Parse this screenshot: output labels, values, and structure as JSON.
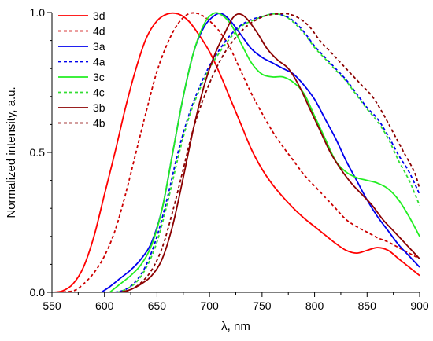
{
  "chart_data": {
    "type": "line",
    "title": "",
    "xlabel": "λ, nm",
    "ylabel": "Normalized intensity, a.u.",
    "xlim": [
      550,
      900
    ],
    "ylim": [
      0,
      1.0
    ],
    "x_ticks": [
      550,
      600,
      650,
      700,
      750,
      800,
      850,
      900
    ],
    "y_ticks": [
      0.0,
      0.5,
      1.0
    ],
    "x_tick_labels": [
      "550",
      "600",
      "650",
      "700",
      "750",
      "800",
      "850",
      "900"
    ],
    "y_tick_labels": [
      "0.0",
      "0.5",
      "1.0"
    ],
    "grid": false,
    "legend_position": "top-left",
    "series": [
      {
        "name": "3d",
        "color": "#ff0000",
        "dash": "solid",
        "points": [
          [
            550,
            0.0
          ],
          [
            560,
            0.005
          ],
          [
            570,
            0.03
          ],
          [
            580,
            0.09
          ],
          [
            590,
            0.2
          ],
          [
            600,
            0.35
          ],
          [
            610,
            0.5
          ],
          [
            620,
            0.66
          ],
          [
            630,
            0.8
          ],
          [
            640,
            0.91
          ],
          [
            650,
            0.97
          ],
          [
            660,
            0.995
          ],
          [
            670,
            0.995
          ],
          [
            680,
            0.97
          ],
          [
            690,
            0.92
          ],
          [
            700,
            0.86
          ],
          [
            710,
            0.78
          ],
          [
            720,
            0.69
          ],
          [
            730,
            0.6
          ],
          [
            740,
            0.51
          ],
          [
            750,
            0.44
          ],
          [
            760,
            0.385
          ],
          [
            770,
            0.34
          ],
          [
            780,
            0.3
          ],
          [
            790,
            0.265
          ],
          [
            800,
            0.235
          ],
          [
            810,
            0.205
          ],
          [
            820,
            0.175
          ],
          [
            830,
            0.15
          ],
          [
            840,
            0.14
          ],
          [
            850,
            0.15
          ],
          [
            860,
            0.16
          ],
          [
            870,
            0.15
          ],
          [
            880,
            0.12
          ],
          [
            890,
            0.09
          ],
          [
            900,
            0.06
          ]
        ]
      },
      {
        "name": "4d",
        "color": "#cc0000",
        "dash": "dashed",
        "points": [
          [
            550,
            0.0
          ],
          [
            570,
            0.005
          ],
          [
            580,
            0.03
          ],
          [
            590,
            0.07
          ],
          [
            600,
            0.13
          ],
          [
            610,
            0.22
          ],
          [
            620,
            0.35
          ],
          [
            630,
            0.5
          ],
          [
            640,
            0.65
          ],
          [
            650,
            0.79
          ],
          [
            660,
            0.89
          ],
          [
            670,
            0.96
          ],
          [
            680,
            0.995
          ],
          [
            690,
            0.995
          ],
          [
            700,
            0.97
          ],
          [
            710,
            0.93
          ],
          [
            720,
            0.87
          ],
          [
            730,
            0.79
          ],
          [
            740,
            0.71
          ],
          [
            750,
            0.64
          ],
          [
            760,
            0.575
          ],
          [
            770,
            0.52
          ],
          [
            780,
            0.47
          ],
          [
            790,
            0.42
          ],
          [
            800,
            0.38
          ],
          [
            810,
            0.34
          ],
          [
            820,
            0.3
          ],
          [
            830,
            0.26
          ],
          [
            840,
            0.235
          ],
          [
            850,
            0.215
          ],
          [
            860,
            0.195
          ],
          [
            870,
            0.18
          ],
          [
            880,
            0.16
          ],
          [
            890,
            0.14
          ],
          [
            900,
            0.12
          ]
        ]
      },
      {
        "name": "3a",
        "color": "#0000ee",
        "dash": "solid",
        "points": [
          [
            597,
            0.0
          ],
          [
            605,
            0.02
          ],
          [
            615,
            0.05
          ],
          [
            625,
            0.08
          ],
          [
            635,
            0.12
          ],
          [
            645,
            0.18
          ],
          [
            655,
            0.3
          ],
          [
            665,
            0.5
          ],
          [
            675,
            0.7
          ],
          [
            685,
            0.86
          ],
          [
            695,
            0.95
          ],
          [
            705,
            0.99
          ],
          [
            712,
            0.995
          ],
          [
            720,
            0.97
          ],
          [
            730,
            0.92
          ],
          [
            740,
            0.87
          ],
          [
            750,
            0.84
          ],
          [
            760,
            0.82
          ],
          [
            770,
            0.8
          ],
          [
            780,
            0.78
          ],
          [
            790,
            0.74
          ],
          [
            800,
            0.69
          ],
          [
            810,
            0.62
          ],
          [
            820,
            0.55
          ],
          [
            830,
            0.47
          ],
          [
            840,
            0.4
          ],
          [
            850,
            0.33
          ],
          [
            860,
            0.27
          ],
          [
            870,
            0.22
          ],
          [
            880,
            0.17
          ],
          [
            890,
            0.13
          ],
          [
            900,
            0.09
          ]
        ]
      },
      {
        "name": "4a",
        "color": "#0000ee",
        "dash": "dashed",
        "points": [
          [
            610,
            0.0
          ],
          [
            620,
            0.01
          ],
          [
            630,
            0.04
          ],
          [
            640,
            0.1
          ],
          [
            650,
            0.2
          ],
          [
            660,
            0.34
          ],
          [
            670,
            0.5
          ],
          [
            680,
            0.63
          ],
          [
            690,
            0.73
          ],
          [
            700,
            0.81
          ],
          [
            710,
            0.87
          ],
          [
            720,
            0.92
          ],
          [
            730,
            0.955
          ],
          [
            740,
            0.975
          ],
          [
            750,
            0.985
          ],
          [
            760,
            0.995
          ],
          [
            770,
            0.99
          ],
          [
            780,
            0.97
          ],
          [
            790,
            0.93
          ],
          [
            800,
            0.88
          ],
          [
            810,
            0.84
          ],
          [
            820,
            0.8
          ],
          [
            830,
            0.76
          ],
          [
            840,
            0.71
          ],
          [
            850,
            0.66
          ],
          [
            860,
            0.62
          ],
          [
            870,
            0.56
          ],
          [
            880,
            0.49
          ],
          [
            890,
            0.43
          ],
          [
            900,
            0.35
          ]
        ]
      },
      {
        "name": "3c",
        "color": "#22ee22",
        "dash": "solid",
        "points": [
          [
            605,
            0.0
          ],
          [
            615,
            0.03
          ],
          [
            625,
            0.06
          ],
          [
            635,
            0.1
          ],
          [
            645,
            0.17
          ],
          [
            655,
            0.3
          ],
          [
            665,
            0.5
          ],
          [
            675,
            0.7
          ],
          [
            685,
            0.86
          ],
          [
            695,
            0.96
          ],
          [
            703,
            0.995
          ],
          [
            710,
            0.995
          ],
          [
            720,
            0.96
          ],
          [
            730,
            0.89
          ],
          [
            740,
            0.82
          ],
          [
            750,
            0.78
          ],
          [
            760,
            0.77
          ],
          [
            770,
            0.77
          ],
          [
            780,
            0.75
          ],
          [
            790,
            0.71
          ],
          [
            800,
            0.63
          ],
          [
            810,
            0.55
          ],
          [
            820,
            0.47
          ],
          [
            830,
            0.43
          ],
          [
            840,
            0.41
          ],
          [
            850,
            0.4
          ],
          [
            860,
            0.39
          ],
          [
            870,
            0.37
          ],
          [
            880,
            0.33
          ],
          [
            890,
            0.27
          ],
          [
            900,
            0.2
          ]
        ]
      },
      {
        "name": "4c",
        "color": "#33dd33",
        "dash": "dashed",
        "points": [
          [
            612,
            0.0
          ],
          [
            620,
            0.01
          ],
          [
            630,
            0.035
          ],
          [
            640,
            0.09
          ],
          [
            650,
            0.18
          ],
          [
            660,
            0.32
          ],
          [
            670,
            0.48
          ],
          [
            680,
            0.62
          ],
          [
            690,
            0.72
          ],
          [
            700,
            0.8
          ],
          [
            710,
            0.86
          ],
          [
            720,
            0.91
          ],
          [
            730,
            0.95
          ],
          [
            740,
            0.97
          ],
          [
            750,
            0.985
          ],
          [
            760,
            0.995
          ],
          [
            770,
            0.99
          ],
          [
            780,
            0.965
          ],
          [
            790,
            0.925
          ],
          [
            800,
            0.875
          ],
          [
            810,
            0.835
          ],
          [
            820,
            0.795
          ],
          [
            830,
            0.755
          ],
          [
            840,
            0.705
          ],
          [
            850,
            0.655
          ],
          [
            860,
            0.61
          ],
          [
            870,
            0.55
          ],
          [
            880,
            0.47
          ],
          [
            890,
            0.4
          ],
          [
            900,
            0.31
          ]
        ]
      },
      {
        "name": "3b",
        "color": "#8b0000",
        "dash": "solid",
        "points": [
          [
            615,
            0.0
          ],
          [
            625,
            0.01
          ],
          [
            635,
            0.03
          ],
          [
            645,
            0.06
          ],
          [
            655,
            0.12
          ],
          [
            665,
            0.24
          ],
          [
            675,
            0.41
          ],
          [
            685,
            0.59
          ],
          [
            695,
            0.74
          ],
          [
            705,
            0.85
          ],
          [
            715,
            0.93
          ],
          [
            722,
            0.98
          ],
          [
            728,
            0.995
          ],
          [
            735,
            0.98
          ],
          [
            745,
            0.93
          ],
          [
            755,
            0.87
          ],
          [
            765,
            0.83
          ],
          [
            775,
            0.8
          ],
          [
            785,
            0.74
          ],
          [
            795,
            0.66
          ],
          [
            805,
            0.58
          ],
          [
            815,
            0.5
          ],
          [
            825,
            0.44
          ],
          [
            835,
            0.39
          ],
          [
            845,
            0.35
          ],
          [
            855,
            0.31
          ],
          [
            865,
            0.26
          ],
          [
            875,
            0.22
          ],
          [
            885,
            0.18
          ],
          [
            895,
            0.14
          ],
          [
            900,
            0.12
          ]
        ]
      },
      {
        "name": "4b",
        "color": "#8b0000",
        "dash": "dashed",
        "points": [
          [
            615,
            0.0
          ],
          [
            625,
            0.01
          ],
          [
            635,
            0.035
          ],
          [
            645,
            0.08
          ],
          [
            655,
            0.16
          ],
          [
            665,
            0.29
          ],
          [
            675,
            0.44
          ],
          [
            685,
            0.59
          ],
          [
            695,
            0.7
          ],
          [
            705,
            0.79
          ],
          [
            715,
            0.86
          ],
          [
            725,
            0.91
          ],
          [
            735,
            0.95
          ],
          [
            745,
            0.975
          ],
          [
            755,
            0.99
          ],
          [
            765,
            0.995
          ],
          [
            775,
            0.995
          ],
          [
            785,
            0.98
          ],
          [
            795,
            0.95
          ],
          [
            805,
            0.9
          ],
          [
            815,
            0.86
          ],
          [
            825,
            0.82
          ],
          [
            835,
            0.78
          ],
          [
            845,
            0.74
          ],
          [
            855,
            0.7
          ],
          [
            865,
            0.64
          ],
          [
            875,
            0.57
          ],
          [
            885,
            0.5
          ],
          [
            895,
            0.43
          ],
          [
            900,
            0.37
          ]
        ]
      }
    ]
  }
}
